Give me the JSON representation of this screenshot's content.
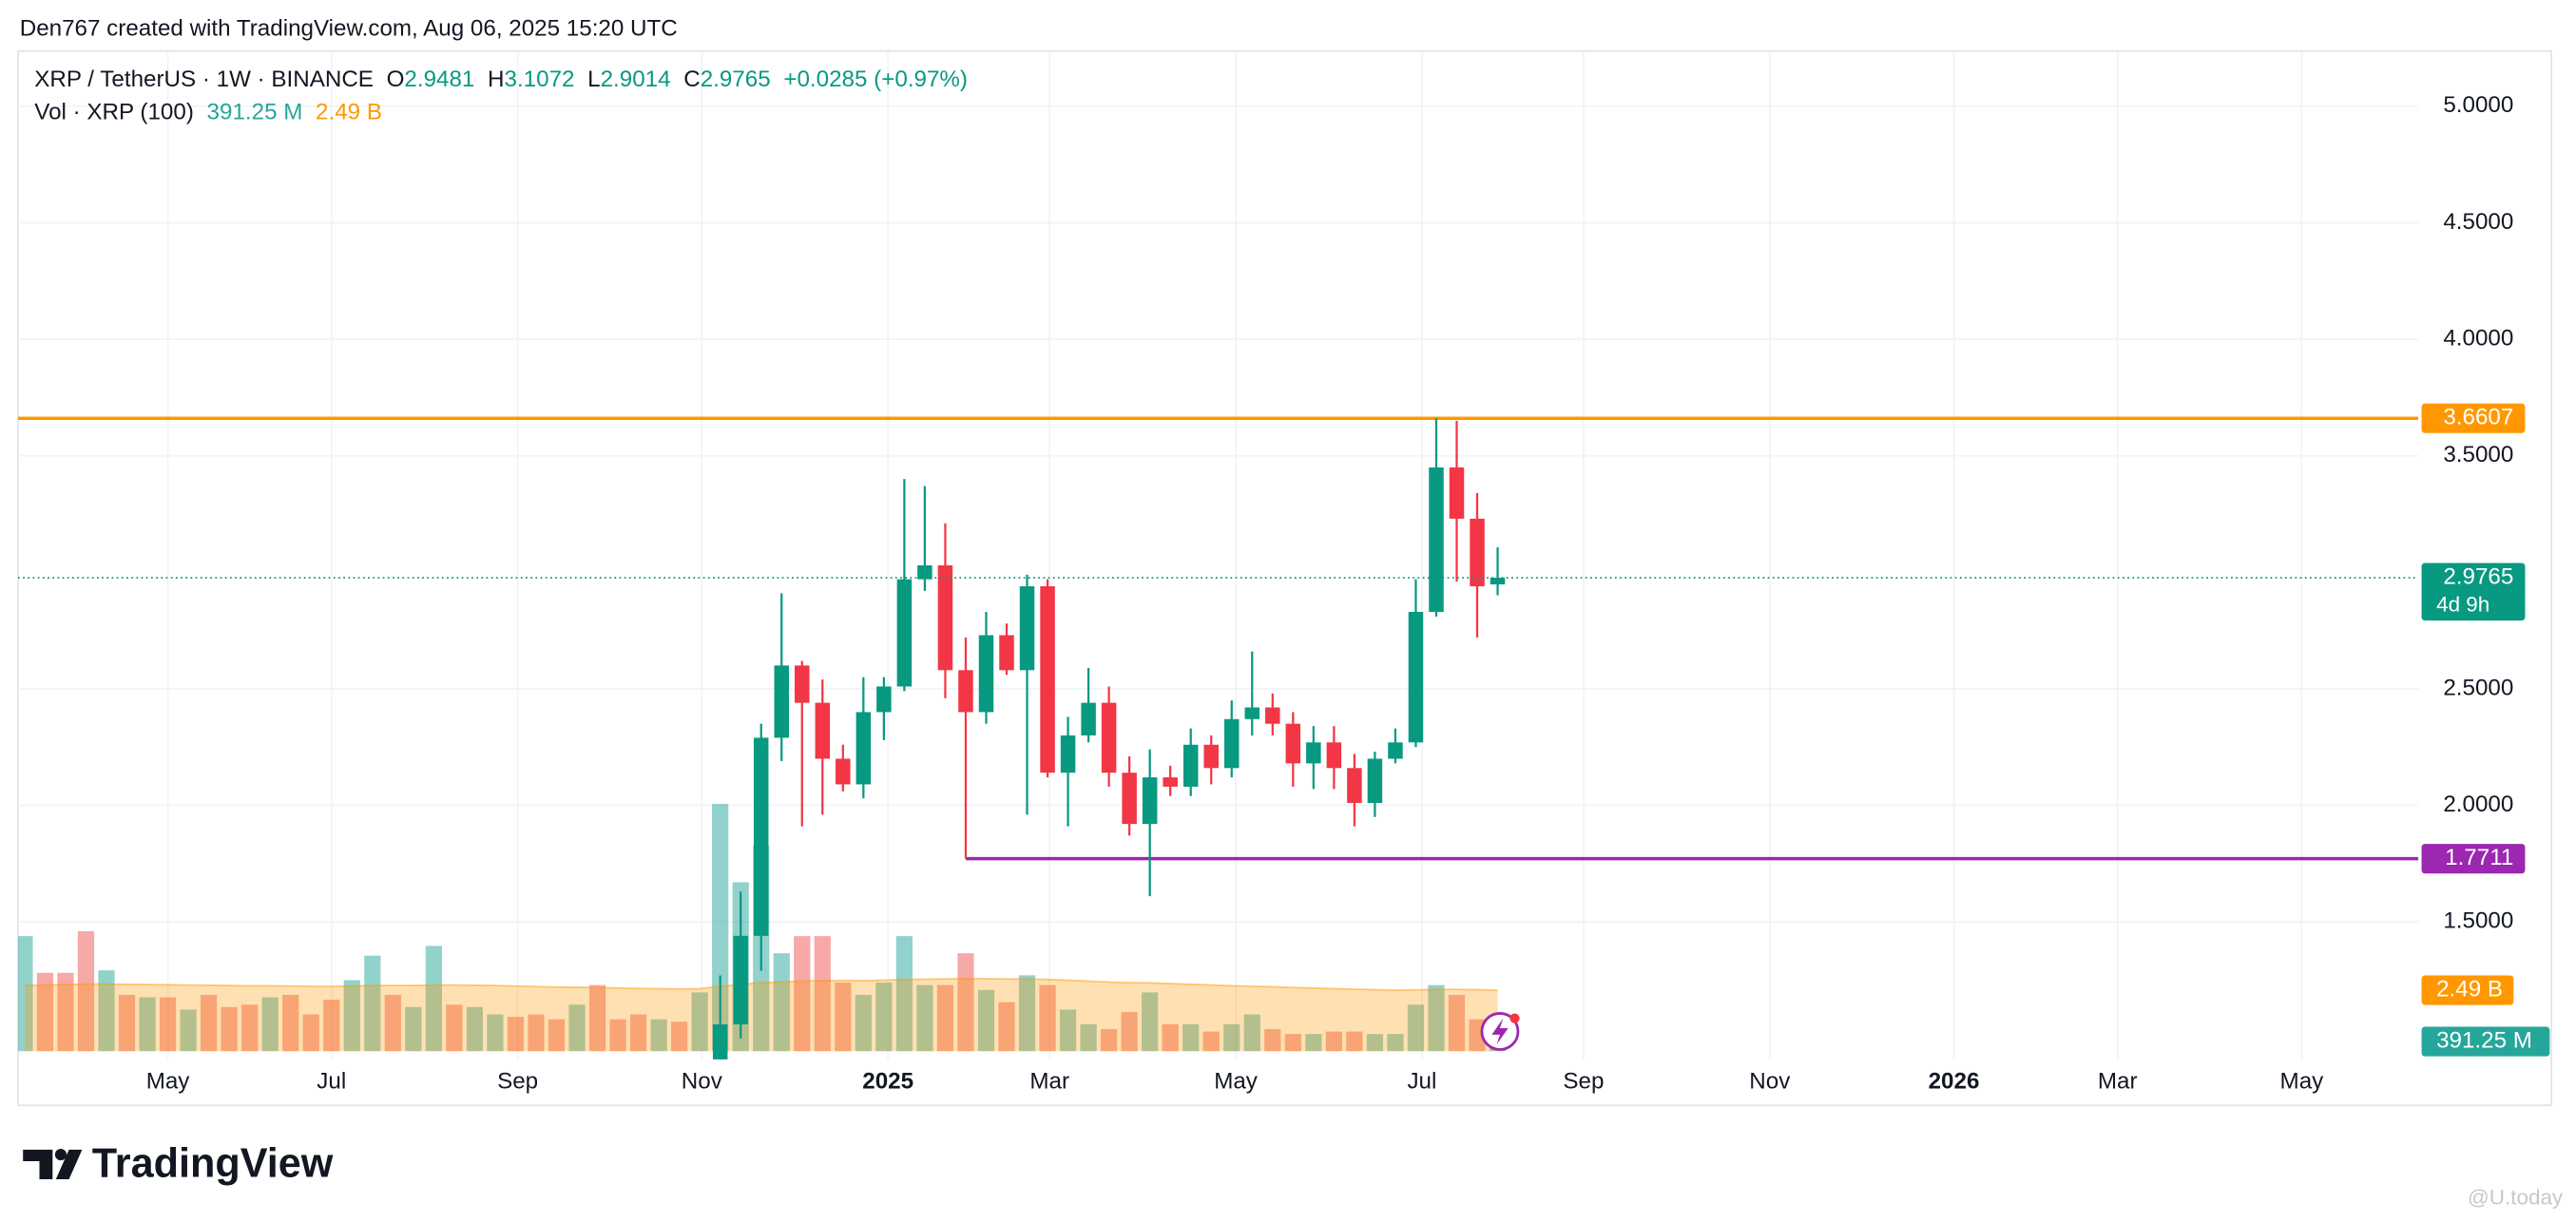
{
  "attribution": "Den767 created with TradingView.com, Aug 06, 2025 15:20 UTC",
  "logo": "TradingView",
  "watermark": "@U.today",
  "chart_data": {
    "type": "candlestick",
    "title": "XRP / TetherUS · 1W · BINANCE",
    "ohlc_labels": [
      "O",
      "H",
      "L",
      "C"
    ],
    "change_label": "+0.0285 (+0.97%)",
    "x": [
      34,
      35,
      36,
      37,
      38,
      39,
      40,
      41,
      42,
      43,
      44,
      45,
      46,
      47,
      48,
      49,
      50,
      51,
      52,
      53,
      54,
      55,
      56,
      57,
      58,
      59,
      60,
      61,
      62,
      63,
      64,
      65,
      66,
      67,
      68,
      69,
      70,
      71,
      72
    ],
    "open": [
      0.56,
      1.06,
      1.44,
      2.29,
      2.6,
      2.44,
      2.2,
      2.09,
      2.4,
      2.51,
      2.97,
      3.03,
      2.58,
      2.4,
      2.73,
      2.58,
      2.94,
      2.14,
      2.3,
      2.44,
      2.14,
      1.92,
      2.12,
      2.08,
      2.26,
      2.16,
      2.37,
      2.42,
      2.35,
      2.18,
      2.27,
      2.16,
      2.01,
      2.2,
      2.27,
      2.83,
      3.45,
      3.23,
      2.9481
    ],
    "high": [
      1.27,
      1.63,
      2.35,
      2.91,
      2.62,
      2.54,
      2.26,
      2.55,
      2.55,
      3.4,
      3.37,
      3.21,
      2.72,
      2.83,
      2.78,
      2.99,
      2.97,
      2.38,
      2.59,
      2.51,
      2.21,
      2.24,
      2.17,
      2.33,
      2.3,
      2.45,
      2.66,
      2.48,
      2.4,
      2.34,
      2.34,
      2.22,
      2.23,
      2.33,
      2.97,
      3.6607,
      3.65,
      3.34,
      3.1072
    ],
    "low": [
      0.55,
      1.0,
      1.29,
      2.19,
      1.91,
      1.96,
      2.06,
      2.03,
      2.28,
      2.49,
      2.92,
      2.46,
      1.7711,
      2.35,
      2.56,
      1.96,
      2.12,
      1.91,
      2.27,
      2.08,
      1.87,
      1.61,
      2.04,
      2.04,
      2.09,
      2.12,
      2.3,
      2.3,
      2.08,
      2.07,
      2.07,
      1.91,
      1.95,
      2.18,
      2.25,
      2.81,
      2.96,
      2.72,
      2.9014
    ],
    "close": [
      1.06,
      1.44,
      2.29,
      2.6,
      2.44,
      2.2,
      2.09,
      2.4,
      2.51,
      2.97,
      3.03,
      2.58,
      2.4,
      2.73,
      2.58,
      2.94,
      2.14,
      2.3,
      2.44,
      2.14,
      1.92,
      2.12,
      2.08,
      2.26,
      2.16,
      2.37,
      2.42,
      2.35,
      2.18,
      2.27,
      2.16,
      2.01,
      2.2,
      2.27,
      2.83,
      3.45,
      3.23,
      2.94,
      2.9765
    ],
    "up_color": "#089981",
    "down_color": "#f23645",
    "countdown": "4d 9h",
    "levels": [
      {
        "value": 3.6607,
        "color": "#ff9800"
      },
      {
        "value": 1.7711,
        "color": "#9c27b0",
        "x_start": 46
      }
    ],
    "volume": {
      "label": "Vol · XRP (100)",
      "x": [
        0,
        1,
        2,
        3,
        4,
        5,
        6,
        7,
        8,
        9,
        10,
        11,
        12,
        13,
        14,
        15,
        16,
        17,
        18,
        19,
        20,
        21,
        22,
        23,
        24,
        25,
        26,
        27,
        28,
        29,
        30,
        31,
        32,
        33,
        34,
        35,
        36,
        37,
        38,
        39,
        40,
        41,
        42,
        43,
        44,
        45,
        46,
        47,
        48,
        49,
        50,
        51,
        52,
        53,
        54,
        55,
        56,
        57,
        58,
        59,
        60,
        61,
        62,
        63,
        64,
        65,
        66,
        67,
        68,
        69,
        70,
        71,
        72
      ],
      "values": [
        4.7,
        3.2,
        3.2,
        4.9,
        3.3,
        2.3,
        2.2,
        2.2,
        1.7,
        2.3,
        1.8,
        1.9,
        2.2,
        2.3,
        1.5,
        2.1,
        2.9,
        3.9,
        2.3,
        1.8,
        4.3,
        1.9,
        1.8,
        1.5,
        1.4,
        1.5,
        1.3,
        1.9,
        2.7,
        1.3,
        1.5,
        1.3,
        1.2,
        2.4,
        10.1,
        6.9,
        8.4,
        4.0,
        4.7,
        4.7,
        2.8,
        2.3,
        2.8,
        4.7,
        2.7,
        2.7,
        4.0,
        2.5,
        2.0,
        3.1,
        2.7,
        1.7,
        1.1,
        0.9,
        1.6,
        2.4,
        1.1,
        1.1,
        0.8,
        1.1,
        1.5,
        0.9,
        0.7,
        0.7,
        0.8,
        0.8,
        0.7,
        0.7,
        1.9,
        2.7,
        2.3,
        1.3,
        0.39125
      ],
      "rising": [
        true,
        false,
        false,
        false,
        true,
        false,
        true,
        false,
        true,
        false,
        false,
        false,
        true,
        false,
        false,
        false,
        true,
        true,
        false,
        true,
        true,
        false,
        true,
        true,
        false,
        false,
        false,
        true,
        false,
        false,
        false,
        true,
        false,
        true,
        true,
        true,
        true,
        true,
        false,
        false,
        false,
        true,
        true,
        true,
        true,
        false,
        false,
        true,
        false,
        true,
        false,
        true,
        true,
        false,
        false,
        true,
        false,
        true,
        false,
        true,
        true,
        false,
        false,
        true,
        false,
        false,
        true,
        true,
        true,
        true,
        false,
        false,
        true
      ],
      "value_labels": [
        null,
        null,
        null,
        null,
        null,
        null,
        null,
        null,
        null,
        null,
        null,
        null,
        null,
        null,
        null,
        null,
        null,
        null,
        null,
        null,
        null,
        null,
        null,
        null,
        null,
        null,
        null,
        null,
        null,
        null,
        null,
        null,
        null,
        null,
        null,
        null,
        null,
        null,
        null,
        null,
        null,
        null,
        null,
        null,
        null,
        null,
        null,
        null,
        null,
        null,
        null,
        null,
        null,
        null,
        null,
        null,
        null,
        null,
        null,
        null,
        null,
        null,
        null,
        null,
        null,
        null,
        null,
        null,
        null,
        null,
        null,
        null,
        "391.25 M"
      ],
      "up_color": "rgba(38,166,154,0.5)",
      "down_color": "rgba(239,83,80,0.5)",
      "ylim": [
        0,
        40.8
      ],
      "ma": {
        "values": [
          2.68,
          2.7,
          2.72,
          2.74,
          2.74,
          2.73,
          2.72,
          2.71,
          2.7,
          2.69,
          2.68,
          2.67,
          2.67,
          2.66,
          2.65,
          2.65,
          2.66,
          2.68,
          2.68,
          2.68,
          2.7,
          2.7,
          2.69,
          2.68,
          2.66,
          2.64,
          2.62,
          2.61,
          2.6,
          2.58,
          2.56,
          2.55,
          2.54,
          2.55,
          2.65,
          2.72,
          2.8,
          2.83,
          2.86,
          2.88,
          2.88,
          2.88,
          2.9,
          2.93,
          2.94,
          2.95,
          2.97,
          2.96,
          2.95,
          2.95,
          2.93,
          2.9,
          2.86,
          2.82,
          2.8,
          2.79,
          2.76,
          2.73,
          2.7,
          2.67,
          2.65,
          2.63,
          2.6,
          2.58,
          2.55,
          2.53,
          2.51,
          2.49,
          2.5,
          2.52,
          2.52,
          2.51,
          2.49
        ],
        "value_labels": [
          null,
          null,
          null,
          null,
          null,
          null,
          null,
          null,
          null,
          null,
          null,
          null,
          null,
          null,
          null,
          null,
          null,
          null,
          null,
          null,
          null,
          null,
          null,
          null,
          null,
          null,
          null,
          null,
          null,
          null,
          null,
          null,
          null,
          null,
          null,
          null,
          null,
          null,
          null,
          null,
          null,
          null,
          null,
          null,
          null,
          null,
          null,
          null,
          null,
          null,
          null,
          null,
          null,
          null,
          null,
          null,
          null,
          null,
          null,
          null,
          null,
          null,
          null,
          null,
          null,
          null,
          null,
          null,
          null,
          null,
          null,
          null,
          "2.49 B"
        ],
        "color": "#ff9800"
      }
    },
    "xlim": [
      -0.32,
      117
    ],
    "xticks": [
      {
        "value": 7.0,
        "label": "May"
      },
      {
        "value": 15.0,
        "label": "Jul"
      },
      {
        "value": 24.1,
        "label": "Sep"
      },
      {
        "value": 33.1,
        "label": "Nov"
      },
      {
        "value": 42.2,
        "label": "2025"
      },
      {
        "value": 50.1,
        "label": "Mar"
      },
      {
        "value": 59.2,
        "label": "May"
      },
      {
        "value": 68.3,
        "label": "Jul"
      },
      {
        "value": 76.2,
        "label": "Sep"
      },
      {
        "value": 85.3,
        "label": "Nov"
      },
      {
        "value": 94.3,
        "label": "2026"
      },
      {
        "value": 102.3,
        "label": "Mar"
      },
      {
        "value": 111.3,
        "label": "May"
      }
    ],
    "ylim": [
      0.91,
      5.23
    ],
    "yticks": [
      {
        "value": 1.5,
        "label": "1.5000"
      },
      {
        "value": 2,
        "label": "2.0000"
      },
      {
        "value": 2.5,
        "label": "2.5000"
      },
      {
        "value": 3.5,
        "label": "3.5000"
      },
      {
        "value": 4,
        "label": "4.0000"
      },
      {
        "value": 4.5,
        "label": "4.5000"
      },
      {
        "value": 5,
        "label": "5.0000"
      }
    ],
    "grid": true
  }
}
